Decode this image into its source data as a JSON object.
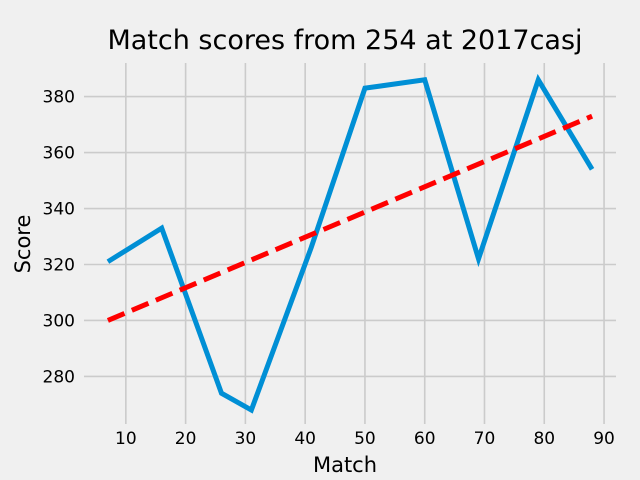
{
  "chart_data": {
    "type": "line",
    "title": "Match scores from 254 at 2017casj",
    "xlabel": "Match",
    "ylabel": "Score",
    "xlim": [
      3,
      92
    ],
    "ylim": [
      263,
      392
    ],
    "xticks": [
      10,
      20,
      30,
      40,
      50,
      60,
      70,
      80,
      90
    ],
    "yticks": [
      280,
      300,
      320,
      340,
      360,
      380
    ],
    "grid": true,
    "series": [
      {
        "type": "line",
        "color": "#008fd5",
        "style": "solid",
        "points": [
          [
            7,
            321
          ],
          [
            16,
            333
          ],
          [
            26,
            274
          ],
          [
            31,
            268
          ],
          [
            41,
            326
          ],
          [
            50,
            383
          ],
          [
            60,
            386
          ],
          [
            69,
            322
          ],
          [
            79,
            386
          ],
          [
            88,
            354
          ]
        ]
      },
      {
        "type": "trendline",
        "color": "#ff0000",
        "style": "dashed",
        "points": [
          [
            7,
            300
          ],
          [
            88,
            373
          ]
        ]
      }
    ]
  }
}
